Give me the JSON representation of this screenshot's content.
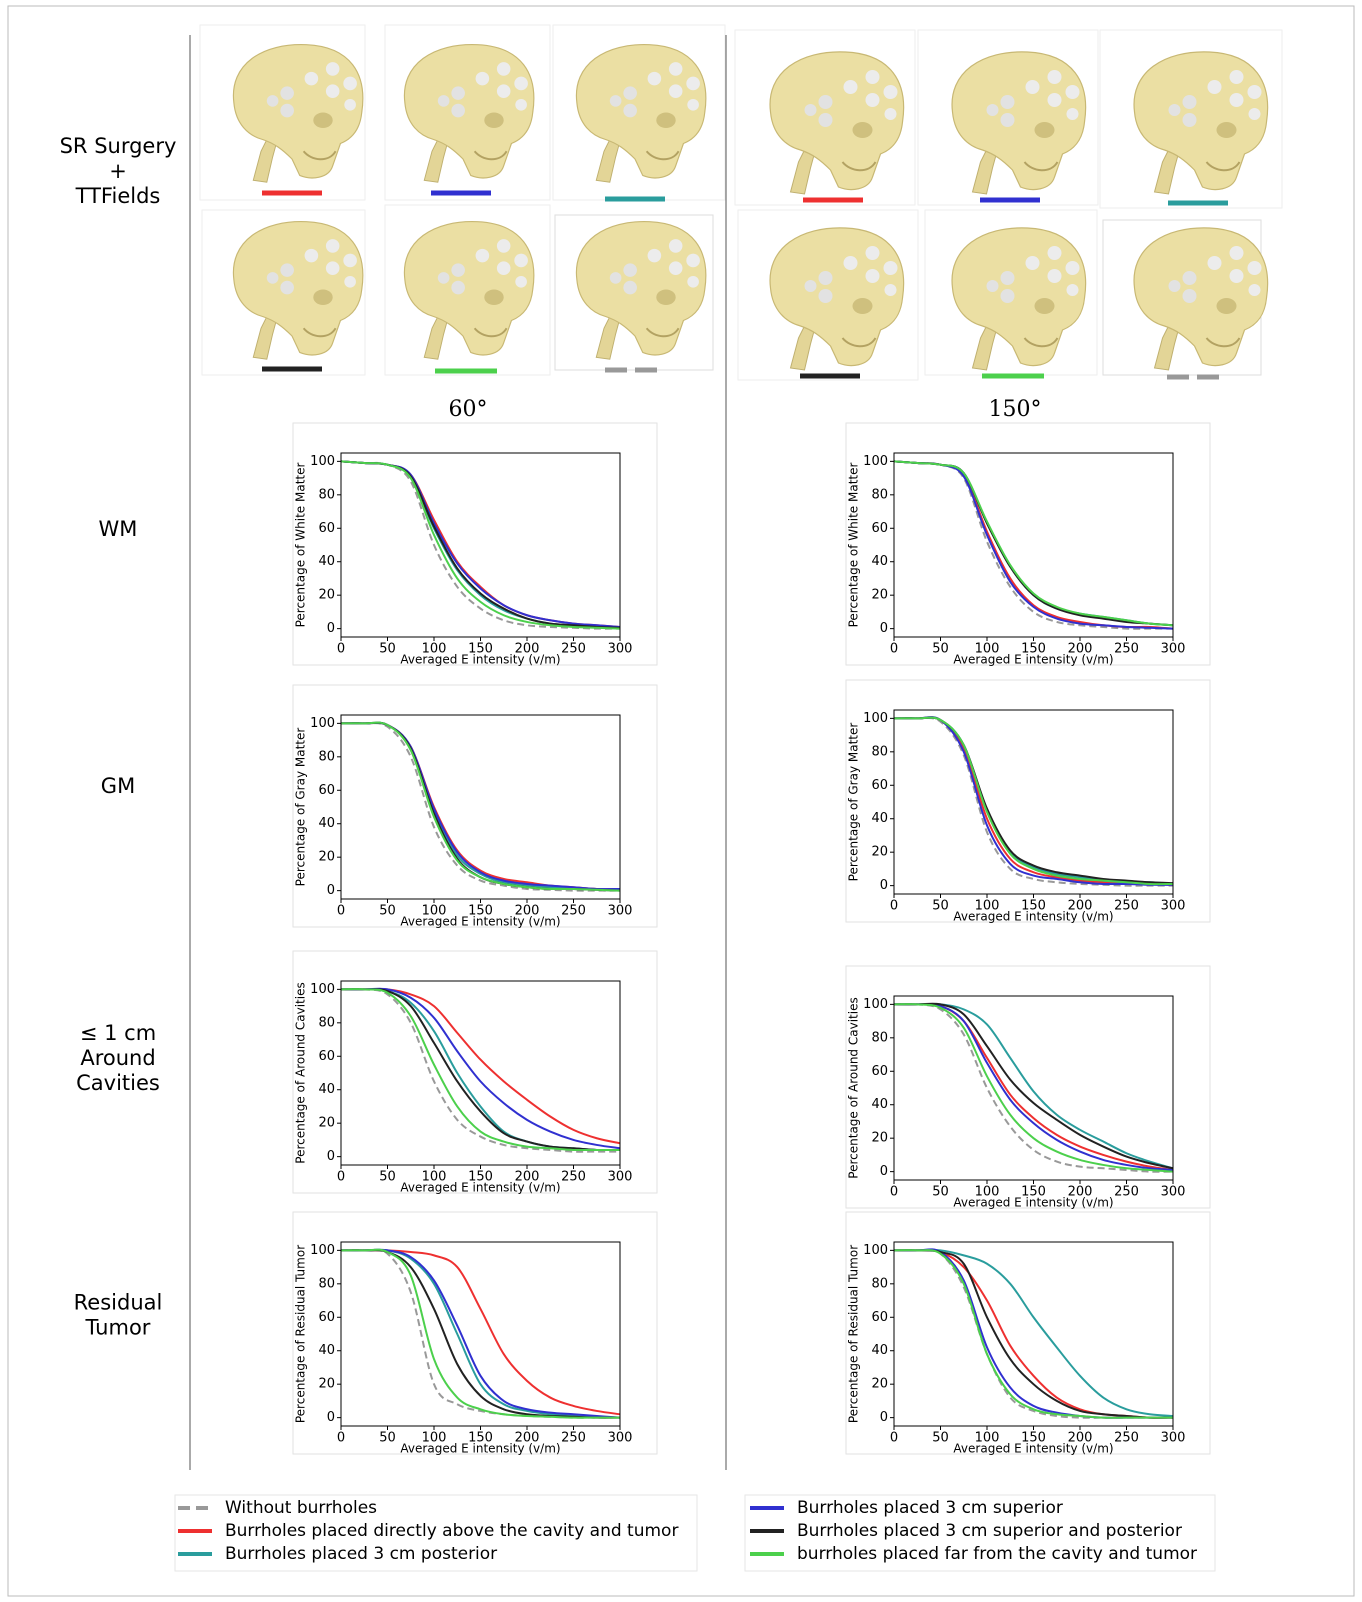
{
  "row_labels": [
    [
      "SR Surgery",
      "+",
      "TTFields"
    ],
    [
      "WM"
    ],
    [
      "GM"
    ],
    [
      "≤ 1 cm",
      "Around",
      "Cavities"
    ],
    [
      "Residual",
      "Tumor"
    ]
  ],
  "column_labels": [
    "60°",
    "150°"
  ],
  "legend": [
    "Without burrholes",
    "Burrholes placed directly above the cavity and tumor",
    "Burrholes placed 3 cm posterior",
    "Burrholes placed 3 cm superior",
    "Burrholes placed 3 cm superior and posterior",
    "burrholes placed far from the cavity and tumor"
  ],
  "chart_data": [
    {
      "type": "line",
      "y_label": "Percentage of White Matter",
      "x_label": "Averaged E intensity (v/m)",
      "x": [
        0,
        25,
        50,
        75,
        100,
        125,
        150,
        175,
        200,
        225,
        250,
        275,
        300
      ],
      "xlim": [
        0,
        300
      ],
      "ylim": [
        -5,
        105
      ],
      "xticks": [
        0,
        50,
        100,
        150,
        200,
        250,
        300
      ],
      "yticks": [
        0,
        20,
        40,
        60,
        80,
        100
      ],
      "series": [
        {
          "color": "#999999",
          "dashed": true,
          "values": [
            100,
            99,
            98,
            88,
            50,
            25,
            12,
            5,
            2,
            1,
            0.5,
            0,
            0
          ]
        },
        {
          "color": "#ee3030",
          "values": [
            100,
            99,
            98,
            92,
            65,
            40,
            25,
            14,
            8,
            5,
            3,
            2,
            1
          ]
        },
        {
          "color": "#2a9d9d",
          "values": [
            100,
            99,
            98,
            91,
            60,
            35,
            20,
            11,
            6,
            3,
            2,
            1,
            0.5
          ]
        },
        {
          "color": "#3030d0",
          "values": [
            100,
            99,
            98,
            92,
            63,
            39,
            24,
            14,
            8,
            5,
            3,
            2,
            1
          ]
        },
        {
          "color": "#222222",
          "values": [
            100,
            99,
            98,
            91,
            61,
            36,
            21,
            12,
            6,
            3,
            2,
            1,
            0.5
          ]
        },
        {
          "color": "#4cd04c",
          "values": [
            100,
            99,
            98,
            90,
            56,
            30,
            16,
            8,
            4,
            2,
            1,
            0.5,
            0
          ]
        }
      ]
    },
    {
      "type": "line",
      "y_label": "Percentage of White Matter",
      "x_label": "Averaged E intensity (v/m)",
      "x": [
        0,
        25,
        50,
        75,
        100,
        125,
        150,
        175,
        200,
        225,
        250,
        275,
        300
      ],
      "xlim": [
        0,
        300
      ],
      "ylim": [
        -5,
        105
      ],
      "xticks": [
        0,
        50,
        100,
        150,
        200,
        250,
        300
      ],
      "yticks": [
        0,
        20,
        40,
        60,
        80,
        100
      ],
      "series": [
        {
          "color": "#999999",
          "dashed": true,
          "values": [
            100,
            99,
            98,
            90,
            52,
            25,
            10,
            4,
            2,
            1,
            0,
            0,
            0
          ]
        },
        {
          "color": "#ee3030",
          "values": [
            100,
            99,
            98,
            92,
            58,
            30,
            14,
            7,
            4,
            2,
            1,
            1,
            0
          ]
        },
        {
          "color": "#2a9d9d",
          "values": [
            100,
            99,
            98,
            93,
            63,
            37,
            20,
            12,
            9,
            7,
            5,
            3,
            2
          ]
        },
        {
          "color": "#3030d0",
          "values": [
            100,
            99,
            98,
            91,
            56,
            28,
            13,
            6,
            3,
            2,
            1,
            0.5,
            0
          ]
        },
        {
          "color": "#222222",
          "values": [
            100,
            99,
            98,
            93,
            63,
            37,
            20,
            12,
            8,
            6,
            4,
            3,
            2
          ]
        },
        {
          "color": "#4cd04c",
          "values": [
            100,
            99,
            98,
            93,
            64,
            38,
            21,
            13,
            9,
            7,
            5,
            3,
            2
          ]
        }
      ]
    },
    {
      "type": "line",
      "y_label": "Percentage of Gray Matter",
      "x_label": "Averaged E intensity (v/m)",
      "x": [
        0,
        25,
        50,
        75,
        100,
        125,
        150,
        175,
        200,
        225,
        250,
        275,
        300
      ],
      "xlim": [
        0,
        300
      ],
      "ylim": [
        -5,
        105
      ],
      "xticks": [
        0,
        50,
        100,
        150,
        200,
        250,
        300
      ],
      "yticks": [
        0,
        20,
        40,
        60,
        80,
        100
      ],
      "series": [
        {
          "color": "#999999",
          "dashed": true,
          "values": [
            100,
            100,
            98,
            80,
            38,
            15,
            6,
            3,
            1,
            0.5,
            0,
            0,
            0
          ]
        },
        {
          "color": "#ee3030",
          "values": [
            100,
            100,
            99,
            86,
            50,
            24,
            12,
            7,
            5,
            3,
            2,
            1,
            1
          ]
        },
        {
          "color": "#2a9d9d",
          "values": [
            100,
            100,
            99,
            85,
            47,
            21,
            10,
            5,
            3,
            2,
            1,
            1,
            0.5
          ]
        },
        {
          "color": "#3030d0",
          "values": [
            100,
            100,
            99,
            86,
            49,
            23,
            11,
            6,
            4,
            3,
            2,
            1,
            1
          ]
        },
        {
          "color": "#222222",
          "values": [
            100,
            100,
            99,
            85,
            46,
            19,
            8,
            4,
            2,
            1,
            1,
            0.5,
            0
          ]
        },
        {
          "color": "#4cd04c",
          "values": [
            100,
            100,
            99,
            84,
            44,
            18,
            8,
            4,
            2,
            1,
            1,
            0.5,
            0
          ]
        }
      ]
    },
    {
      "type": "line",
      "y_label": "Percentage of Gray Matter",
      "x_label": "Averaged E intensity (v/m)",
      "x": [
        0,
        25,
        50,
        75,
        100,
        125,
        150,
        175,
        200,
        225,
        250,
        275,
        300
      ],
      "xlim": [
        0,
        300
      ],
      "ylim": [
        -5,
        105
      ],
      "xticks": [
        0,
        50,
        100,
        150,
        200,
        250,
        300
      ],
      "yticks": [
        0,
        20,
        40,
        60,
        80,
        100
      ],
      "series": [
        {
          "color": "#999999",
          "dashed": true,
          "values": [
            100,
            100,
            98,
            78,
            32,
            10,
            4,
            2,
            1,
            0.5,
            0,
            0,
            0
          ]
        },
        {
          "color": "#ee3030",
          "values": [
            100,
            100,
            99,
            82,
            40,
            16,
            8,
            5,
            3,
            2,
            1,
            1,
            0.5
          ]
        },
        {
          "color": "#2a9d9d",
          "values": [
            100,
            100,
            99,
            84,
            45,
            20,
            11,
            7,
            5,
            3,
            2,
            2,
            1
          ]
        },
        {
          "color": "#3030d0",
          "values": [
            100,
            100,
            99,
            80,
            36,
            13,
            6,
            4,
            2,
            1,
            1,
            0.5,
            0.5
          ]
        },
        {
          "color": "#222222",
          "values": [
            100,
            100,
            99,
            84,
            46,
            21,
            12,
            8,
            6,
            4,
            3,
            2,
            1.5
          ]
        },
        {
          "color": "#4cd04c",
          "values": [
            100,
            100,
            99,
            84,
            44,
            19,
            10,
            6,
            4,
            3,
            2,
            1,
            1
          ]
        }
      ]
    },
    {
      "type": "line",
      "y_label": "Percentage of Around Cavities",
      "x_label": "Averaged E intensity (v/m)",
      "x": [
        0,
        25,
        50,
        75,
        100,
        125,
        150,
        175,
        200,
        225,
        250,
        275,
        300
      ],
      "xlim": [
        0,
        300
      ],
      "ylim": [
        -5,
        105
      ],
      "xticks": [
        0,
        50,
        100,
        150,
        200,
        250,
        300
      ],
      "yticks": [
        0,
        20,
        40,
        60,
        80,
        100
      ],
      "series": [
        {
          "color": "#999999",
          "dashed": true,
          "values": [
            100,
            100,
            97,
            80,
            45,
            22,
            12,
            7,
            5,
            4,
            3,
            3,
            3
          ]
        },
        {
          "color": "#ee3030",
          "values": [
            100,
            100,
            100,
            97,
            90,
            74,
            58,
            45,
            34,
            24,
            16,
            11,
            8
          ]
        },
        {
          "color": "#2a9d9d",
          "values": [
            100,
            100,
            99,
            92,
            75,
            50,
            30,
            15,
            9,
            6,
            5,
            4,
            4
          ]
        },
        {
          "color": "#3030d0",
          "values": [
            100,
            100,
            100,
            95,
            83,
            63,
            45,
            32,
            22,
            15,
            10,
            7,
            5
          ]
        },
        {
          "color": "#222222",
          "values": [
            100,
            100,
            99,
            90,
            68,
            45,
            27,
            14,
            9,
            6,
            5,
            4,
            4
          ]
        },
        {
          "color": "#4cd04c",
          "values": [
            100,
            100,
            98,
            84,
            55,
            30,
            15,
            9,
            6,
            5,
            4,
            4,
            4
          ]
        }
      ]
    },
    {
      "type": "line",
      "y_label": "Percentage of Around Cavities",
      "x_label": "Averaged E intensity (v/m)",
      "x": [
        0,
        25,
        50,
        75,
        100,
        125,
        150,
        175,
        200,
        225,
        250,
        275,
        300
      ],
      "xlim": [
        0,
        300
      ],
      "ylim": [
        -5,
        105
      ],
      "xticks": [
        0,
        50,
        100,
        150,
        200,
        250,
        300
      ],
      "yticks": [
        0,
        20,
        40,
        60,
        80,
        100
      ],
      "series": [
        {
          "color": "#999999",
          "dashed": true,
          "values": [
            100,
            100,
            97,
            82,
            50,
            27,
            13,
            6,
            3,
            2,
            1,
            0,
            0
          ]
        },
        {
          "color": "#ee3030",
          "values": [
            100,
            100,
            99,
            90,
            68,
            46,
            32,
            22,
            15,
            10,
            6,
            3,
            1
          ]
        },
        {
          "color": "#2a9d9d",
          "values": [
            100,
            100,
            100,
            97,
            88,
            68,
            48,
            34,
            25,
            18,
            11,
            6,
            2
          ]
        },
        {
          "color": "#3030d0",
          "values": [
            100,
            100,
            99,
            90,
            65,
            43,
            29,
            19,
            12,
            7,
            4,
            2,
            1
          ]
        },
        {
          "color": "#222222",
          "values": [
            100,
            100,
            100,
            94,
            75,
            55,
            41,
            31,
            22,
            15,
            9,
            5,
            2
          ]
        },
        {
          "color": "#4cd04c",
          "values": [
            100,
            100,
            98,
            86,
            57,
            34,
            20,
            12,
            7,
            4,
            2,
            1,
            0
          ]
        }
      ]
    },
    {
      "type": "line",
      "y_label": "Percentage of Residual Tumor",
      "x_label": "Averaged E intensity (v/m)",
      "x": [
        0,
        25,
        50,
        75,
        100,
        125,
        150,
        175,
        200,
        225,
        250,
        275,
        300
      ],
      "xlim": [
        0,
        300
      ],
      "ylim": [
        -5,
        105
      ],
      "xticks": [
        0,
        50,
        100,
        150,
        200,
        250,
        300
      ],
      "yticks": [
        0,
        20,
        40,
        60,
        80,
        100
      ],
      "series": [
        {
          "color": "#999999",
          "dashed": true,
          "values": [
            100,
            100,
            98,
            75,
            20,
            8,
            4,
            2,
            1,
            0.5,
            0,
            0,
            0
          ]
        },
        {
          "color": "#ee3030",
          "values": [
            100,
            100,
            100,
            99,
            97,
            90,
            65,
            38,
            22,
            12,
            7,
            4,
            2
          ]
        },
        {
          "color": "#2a9d9d",
          "values": [
            100,
            100,
            100,
            95,
            80,
            50,
            20,
            8,
            4,
            2,
            1,
            0.5,
            0
          ]
        },
        {
          "color": "#3030d0",
          "values": [
            100,
            100,
            100,
            96,
            82,
            55,
            25,
            10,
            5,
            3,
            2,
            1,
            0
          ]
        },
        {
          "color": "#222222",
          "values": [
            100,
            100,
            99,
            90,
            65,
            32,
            13,
            5,
            2,
            1,
            0.5,
            0,
            0
          ]
        },
        {
          "color": "#4cd04c",
          "values": [
            100,
            100,
            99,
            85,
            35,
            12,
            5,
            2,
            1,
            0.5,
            0,
            0,
            0
          ]
        }
      ]
    },
    {
      "type": "line",
      "y_label": "Percentage of Residual Tumor",
      "x_label": "Averaged E intensity (v/m)",
      "x": [
        0,
        25,
        50,
        75,
        100,
        125,
        150,
        175,
        200,
        225,
        250,
        275,
        300
      ],
      "xlim": [
        0,
        300
      ],
      "ylim": [
        -5,
        105
      ],
      "xticks": [
        0,
        50,
        100,
        150,
        200,
        250,
        300
      ],
      "yticks": [
        0,
        20,
        40,
        60,
        80,
        100
      ],
      "series": [
        {
          "color": "#999999",
          "dashed": true,
          "values": [
            100,
            100,
            98,
            78,
            38,
            12,
            4,
            1,
            0,
            0,
            0,
            0,
            0
          ]
        },
        {
          "color": "#ee3030",
          "values": [
            100,
            100,
            99,
            90,
            70,
            43,
            25,
            12,
            5,
            2,
            1,
            0,
            0
          ]
        },
        {
          "color": "#2a9d9d",
          "values": [
            100,
            100,
            100,
            97,
            92,
            80,
            60,
            42,
            25,
            12,
            5,
            2,
            1
          ]
        },
        {
          "color": "#3030d0",
          "values": [
            100,
            100,
            99,
            82,
            42,
            18,
            7,
            3,
            1,
            0,
            0,
            0,
            0
          ]
        },
        {
          "color": "#222222",
          "values": [
            100,
            100,
            99,
            92,
            60,
            35,
            20,
            10,
            4,
            2,
            1,
            0,
            0
          ]
        },
        {
          "color": "#4cd04c",
          "values": [
            100,
            100,
            98,
            80,
            38,
            14,
            5,
            2,
            1,
            0,
            0,
            0,
            0
          ]
        }
      ]
    }
  ]
}
